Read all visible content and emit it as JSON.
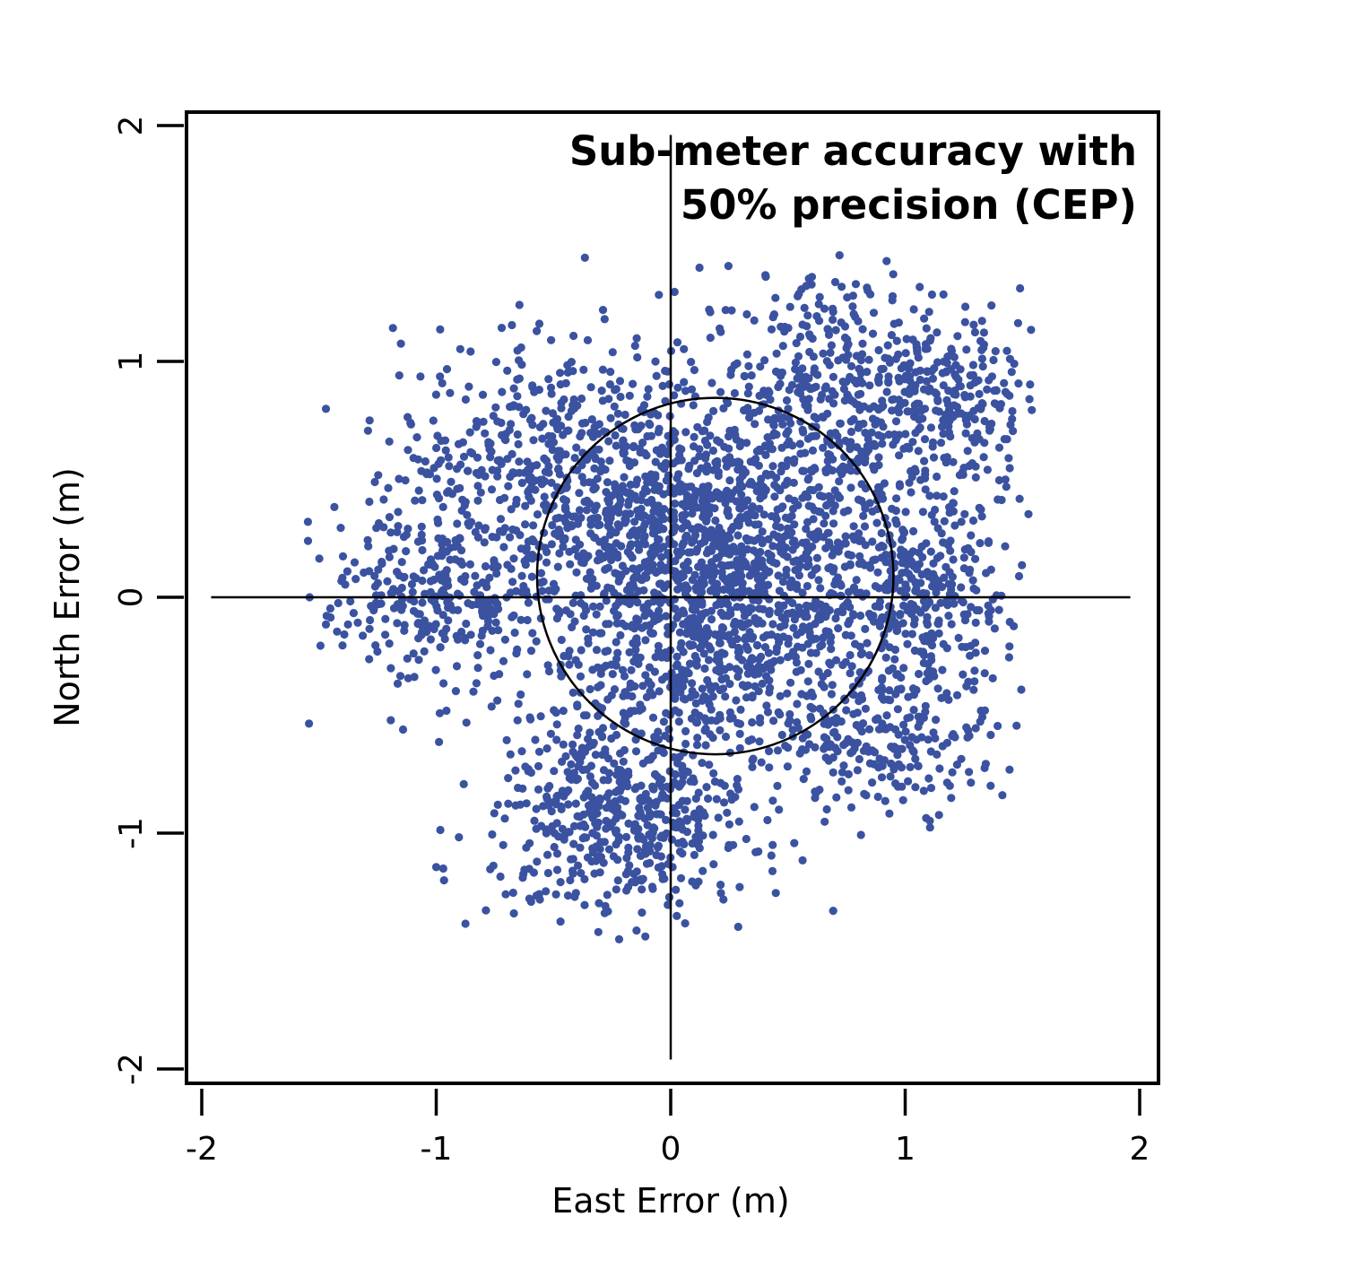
{
  "chart_data": {
    "type": "scatter",
    "title": [
      "Sub-meter accuracy with",
      "50% precision (CEP)"
    ],
    "xlabel": "East Error (m)",
    "ylabel": "North Error (m)",
    "xlim": [
      -2,
      2
    ],
    "ylim": [
      -2,
      2
    ],
    "xticks": [
      -2,
      -1,
      0,
      1,
      2
    ],
    "yticks": [
      -2,
      -1,
      0,
      1,
      2
    ],
    "xtick_labels": [
      "-2",
      "-1",
      "0",
      "1",
      "2"
    ],
    "ytick_labels": [
      "-2",
      "-1",
      "0",
      "1",
      "2"
    ],
    "grid": false,
    "point_color": "#3a52a0",
    "reference_lines": {
      "horizontal_y": 0,
      "vertical_x": 0,
      "extent": [
        -1.96,
        1.96
      ]
    },
    "cep_circle": {
      "center": [
        0.19,
        0.09
      ],
      "radius": 0.76
    },
    "point_count_approx": 4000,
    "point_bounds": {
      "x": [
        -1.55,
        1.55
      ],
      "y": [
        -1.45,
        1.45
      ]
    },
    "point_clusters": [
      {
        "center": [
          0.2,
          0.05
        ],
        "spread": [
          0.42,
          0.38
        ],
        "n": 1700
      },
      {
        "center": [
          0.75,
          0.85
        ],
        "spread": [
          0.33,
          0.28
        ],
        "n": 500
      },
      {
        "center": [
          -0.5,
          0.55
        ],
        "spread": [
          0.33,
          0.28
        ],
        "n": 500
      },
      {
        "center": [
          -0.2,
          -0.95
        ],
        "spread": [
          0.28,
          0.22
        ],
        "n": 500
      },
      {
        "center": [
          -1.05,
          0.0
        ],
        "spread": [
          0.22,
          0.2
        ],
        "n": 250
      },
      {
        "center": [
          1.1,
          0.0
        ],
        "spread": [
          0.15,
          0.18
        ],
        "n": 220
      },
      {
        "center": [
          0.95,
          -0.6
        ],
        "spread": [
          0.22,
          0.15
        ],
        "n": 200
      },
      {
        "center": [
          1.25,
          0.85
        ],
        "spread": [
          0.15,
          0.2
        ],
        "n": 130
      }
    ],
    "notable_points": [
      [
        -1.54,
        0.0
      ],
      [
        1.53,
        0.84
      ],
      [
        1.49,
        1.31
      ],
      [
        -0.22,
        -1.45
      ],
      [
        -1.2,
        0.66
      ],
      [
        0.72,
        1.45
      ],
      [
        1.34,
        -0.48
      ],
      [
        -0.97,
        -1.15
      ]
    ]
  }
}
